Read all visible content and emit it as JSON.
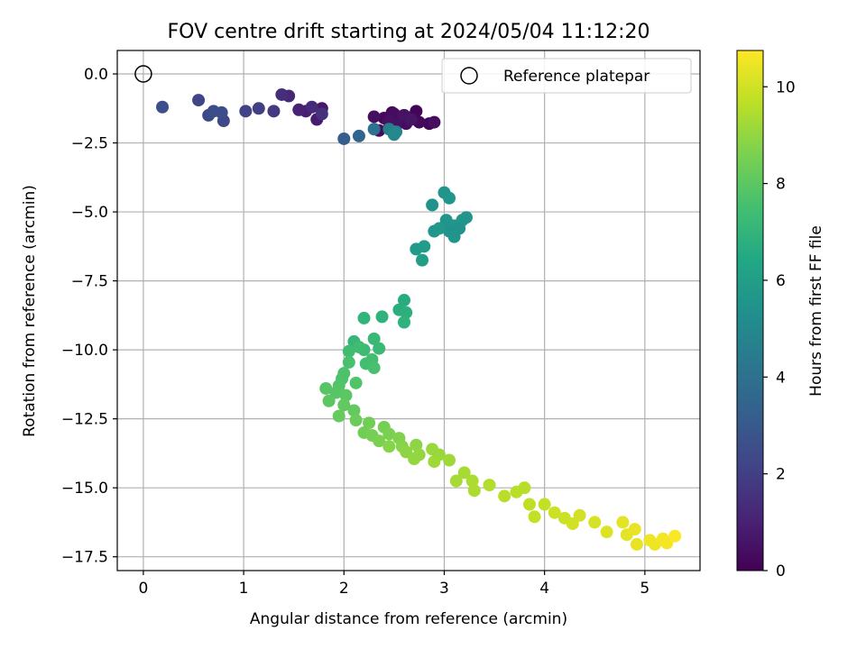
{
  "chart_data": {
    "type": "scatter",
    "title": "FOV centre drift starting at 2024/05/04 11:12:20",
    "xlabel": "Angular distance from reference (arcmin)",
    "ylabel": "Rotation from reference (arcmin)",
    "xlim": [
      -0.26,
      5.55
    ],
    "ylim": [
      -18.0,
      0.85
    ],
    "xticks": [
      0,
      1,
      2,
      3,
      4,
      5
    ],
    "xtick_labels": [
      "0",
      "1",
      "2",
      "3",
      "4",
      "5"
    ],
    "yticks": [
      0.0,
      -2.5,
      -5.0,
      -7.5,
      -10.0,
      -12.5,
      -15.0,
      -17.5
    ],
    "ytick_labels": [
      "0.0",
      "−2.5",
      "−5.0",
      "−7.5",
      "−10.0",
      "−12.5",
      "−15.0",
      "−17.5"
    ],
    "grid": true,
    "legend": {
      "position": "top-right",
      "entries": [
        "Reference platepar"
      ]
    },
    "reference_point": {
      "x": 0,
      "y": 0
    },
    "colorbar": {
      "label": "Hours from first FF file",
      "colormap": "viridis",
      "range": [
        0,
        10.75
      ],
      "ticks": [
        0,
        2,
        4,
        6,
        8,
        10
      ],
      "tick_labels": [
        "0",
        "2",
        "4",
        "6",
        "8",
        "10"
      ]
    },
    "points": [
      [
        2.55,
        -1.75,
        0.1
      ],
      [
        2.62,
        -1.55,
        0.15
      ],
      [
        2.48,
        -1.4,
        0.2
      ],
      [
        2.72,
        -1.35,
        0.1
      ],
      [
        2.85,
        -1.8,
        0.15
      ],
      [
        2.75,
        -1.75,
        0.2
      ],
      [
        2.4,
        -1.6,
        0.25
      ],
      [
        2.35,
        -2.05,
        0.3
      ],
      [
        2.45,
        -1.95,
        0.3
      ],
      [
        2.5,
        -1.45,
        0.35
      ],
      [
        2.55,
        -1.55,
        0.4
      ],
      [
        2.62,
        -1.8,
        0.35
      ],
      [
        2.9,
        -1.75,
        0.4
      ],
      [
        2.3,
        -1.55,
        0.45
      ],
      [
        2.45,
        -1.7,
        0.5
      ],
      [
        2.52,
        -1.85,
        0.5
      ],
      [
        2.6,
        -1.5,
        0.55
      ],
      [
        2.67,
        -1.65,
        0.6
      ],
      [
        1.78,
        -1.25,
        0.7
      ],
      [
        1.73,
        -1.65,
        0.8
      ],
      [
        1.62,
        -1.35,
        0.9
      ],
      [
        1.55,
        -1.3,
        1.0
      ],
      [
        1.45,
        -0.8,
        1.2
      ],
      [
        1.38,
        -0.75,
        1.4
      ],
      [
        1.68,
        -1.2,
        1.3
      ],
      [
        1.78,
        -1.45,
        1.5
      ],
      [
        1.3,
        -1.35,
        1.8
      ],
      [
        1.15,
        -1.25,
        2.0
      ],
      [
        1.02,
        -1.35,
        2.1
      ],
      [
        0.55,
        -0.95,
        2.2
      ],
      [
        0.8,
        -1.7,
        2.3
      ],
      [
        0.65,
        -1.5,
        2.4
      ],
      [
        0.78,
        -1.4,
        2.5
      ],
      [
        0.7,
        -1.35,
        2.5
      ],
      [
        0.19,
        -1.2,
        2.6
      ],
      [
        2.0,
        -2.35,
        3.2
      ],
      [
        2.15,
        -2.25,
        3.5
      ],
      [
        2.3,
        -2.0,
        4.0
      ],
      [
        2.45,
        -2.0,
        4.6
      ],
      [
        2.52,
        -2.1,
        4.8
      ],
      [
        2.5,
        -2.2,
        5.0
      ],
      [
        2.88,
        -4.75,
        5.4
      ],
      [
        3.0,
        -4.3,
        5.5
      ],
      [
        3.05,
        -4.5,
        5.6
      ],
      [
        3.02,
        -5.3,
        5.5
      ],
      [
        3.1,
        -5.5,
        5.6
      ],
      [
        3.18,
        -5.3,
        5.6
      ],
      [
        3.22,
        -5.2,
        5.5
      ],
      [
        3.15,
        -5.6,
        5.4
      ],
      [
        3.05,
        -5.7,
        5.4
      ],
      [
        3.1,
        -5.9,
        5.5
      ],
      [
        2.9,
        -5.7,
        5.6
      ],
      [
        2.95,
        -5.6,
        5.7
      ],
      [
        2.72,
        -6.35,
        5.8
      ],
      [
        2.8,
        -6.25,
        5.9
      ],
      [
        2.78,
        -6.75,
        6.0
      ],
      [
        2.6,
        -8.2,
        6.6
      ],
      [
        2.55,
        -8.55,
        6.7
      ],
      [
        2.62,
        -8.65,
        6.8
      ],
      [
        2.6,
        -9.0,
        6.9
      ],
      [
        2.38,
        -8.8,
        6.9
      ],
      [
        2.2,
        -8.85,
        7.0
      ],
      [
        2.1,
        -9.7,
        7.1
      ],
      [
        2.3,
        -9.6,
        7.2
      ],
      [
        2.35,
        -9.95,
        7.2
      ],
      [
        2.2,
        -10.0,
        7.3
      ],
      [
        2.05,
        -10.05,
        7.4
      ],
      [
        2.15,
        -9.9,
        7.4
      ],
      [
        2.28,
        -10.35,
        7.5
      ],
      [
        2.22,
        -10.5,
        7.5
      ],
      [
        2.3,
        -10.65,
        7.6
      ],
      [
        2.05,
        -10.45,
        7.6
      ],
      [
        2.0,
        -10.85,
        7.7
      ],
      [
        1.98,
        -11.05,
        7.7
      ],
      [
        1.95,
        -11.3,
        7.8
      ],
      [
        2.12,
        -11.2,
        7.8
      ],
      [
        1.82,
        -11.4,
        7.9
      ],
      [
        1.92,
        -11.55,
        7.9
      ],
      [
        2.02,
        -11.65,
        8.0
      ],
      [
        1.85,
        -11.85,
        8.0
      ],
      [
        2.0,
        -12.0,
        8.1
      ],
      [
        2.1,
        -12.2,
        8.1
      ],
      [
        1.95,
        -12.4,
        8.2
      ],
      [
        2.12,
        -12.55,
        8.3
      ],
      [
        2.25,
        -12.65,
        8.4
      ],
      [
        2.2,
        -13.0,
        8.4
      ],
      [
        2.28,
        -13.1,
        8.5
      ],
      [
        2.4,
        -12.8,
        8.5
      ],
      [
        2.45,
        -13.05,
        8.6
      ],
      [
        2.35,
        -13.3,
        8.6
      ],
      [
        2.55,
        -13.2,
        8.7
      ],
      [
        2.58,
        -13.5,
        8.8
      ],
      [
        2.45,
        -13.5,
        8.8
      ],
      [
        2.72,
        -13.45,
        8.9
      ],
      [
        2.62,
        -13.7,
        8.9
      ],
      [
        2.75,
        -13.8,
        9.0
      ],
      [
        2.7,
        -13.95,
        9.0
      ],
      [
        2.88,
        -13.6,
        9.1
      ],
      [
        2.95,
        -13.8,
        9.1
      ],
      [
        2.9,
        -14.05,
        9.2
      ],
      [
        3.05,
        -14.0,
        9.2
      ],
      [
        3.12,
        -14.75,
        9.3
      ],
      [
        3.2,
        -14.45,
        9.3
      ],
      [
        3.28,
        -14.75,
        9.4
      ],
      [
        3.3,
        -15.1,
        9.4
      ],
      [
        3.45,
        -14.9,
        9.5
      ],
      [
        3.6,
        -15.3,
        9.6
      ],
      [
        3.72,
        -15.15,
        9.6
      ],
      [
        3.8,
        -15.0,
        9.6
      ],
      [
        3.85,
        -15.6,
        9.7
      ],
      [
        3.9,
        -16.05,
        9.8
      ],
      [
        4.0,
        -15.6,
        9.8
      ],
      [
        4.1,
        -15.9,
        9.9
      ],
      [
        4.2,
        -16.1,
        9.9
      ],
      [
        4.28,
        -16.3,
        10.0
      ],
      [
        4.35,
        -16.0,
        10.0
      ],
      [
        4.5,
        -16.25,
        10.1
      ],
      [
        4.62,
        -16.6,
        10.2
      ],
      [
        4.78,
        -16.25,
        10.3
      ],
      [
        4.82,
        -16.7,
        10.3
      ],
      [
        4.9,
        -16.5,
        10.4
      ],
      [
        4.92,
        -17.05,
        10.4
      ],
      [
        5.05,
        -16.9,
        10.5
      ],
      [
        5.1,
        -17.05,
        10.5
      ],
      [
        5.18,
        -16.85,
        10.6
      ],
      [
        5.22,
        -17.0,
        10.6
      ],
      [
        5.3,
        -16.75,
        10.7
      ]
    ]
  }
}
